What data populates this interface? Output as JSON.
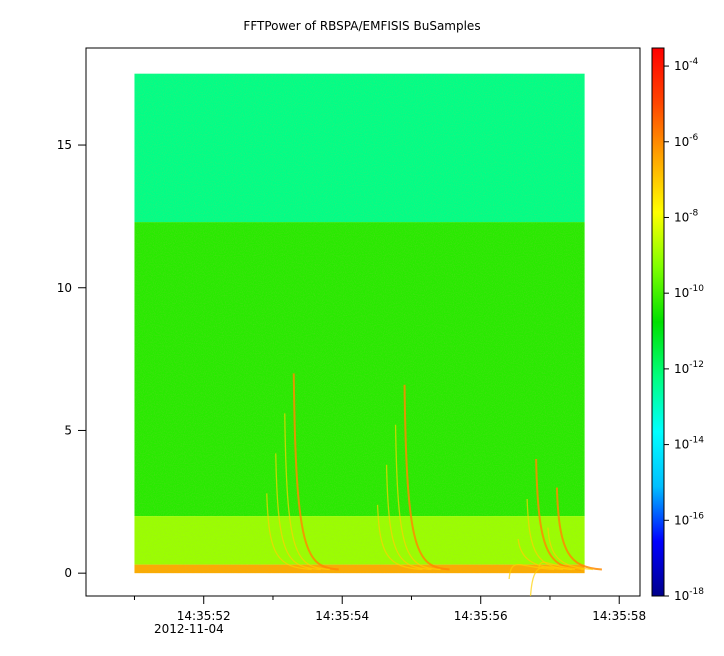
{
  "chart_data": {
    "type": "heatmap",
    "title": "FFTPower of RBSPA/EMFISIS  BuSamples",
    "xlabel": "",
    "ylabel": "",
    "x_ticks": [
      "14:35:52",
      "14:35:54",
      "14:35:56",
      "14:35:58"
    ],
    "x_date_label": "2012-11-04",
    "xlim": [
      "14:35:50.3",
      "14:35:58.3"
    ],
    "data_xrange": [
      "14:35:51.0",
      "14:35:57.5"
    ],
    "y_ticks": [
      0,
      5,
      10,
      15
    ],
    "ylim": [
      -0.8,
      18.4
    ],
    "data_yrange": [
      0,
      17.5
    ],
    "bands": [
      {
        "y_from": 12.3,
        "y_to": 17.5,
        "log10_power": -12.3
      },
      {
        "y_from": 2.0,
        "y_to": 12.3,
        "log10_power": -10.3
      },
      {
        "y_from": 0.3,
        "y_to": 2.0,
        "log10_power": -9.0
      },
      {
        "y_from": 0,
        "y_to": 0.3,
        "log10_power": -6.5
      }
    ],
    "chorus_elements": [
      {
        "start_time": "14:35:53.3",
        "peak_y": 7.0
      },
      {
        "start_time": "14:35:54.9",
        "peak_y": 6.6
      },
      {
        "start_time": "14:35:56.8",
        "peak_y": 4.0
      },
      {
        "start_time": "14:35:57.1",
        "peak_y": 3.0
      }
    ],
    "colorbar": {
      "scale": "log",
      "range": [
        "1e-18",
        "3e-4"
      ],
      "tick_bases": [
        "10",
        "10",
        "10",
        "10",
        "10",
        "10",
        "10",
        "10"
      ],
      "tick_exponents": [
        "-18",
        "-16",
        "-14",
        "-12",
        "-10",
        "-8",
        "-6",
        "-4"
      ],
      "colormap": [
        "#00008b",
        "#0000ff",
        "#00bfff",
        "#00ffff",
        "#00ff7f",
        "#00e000",
        "#7fff00",
        "#ffff00",
        "#ffa500",
        "#ff4500",
        "#ff0000"
      ]
    },
    "grid": false
  }
}
